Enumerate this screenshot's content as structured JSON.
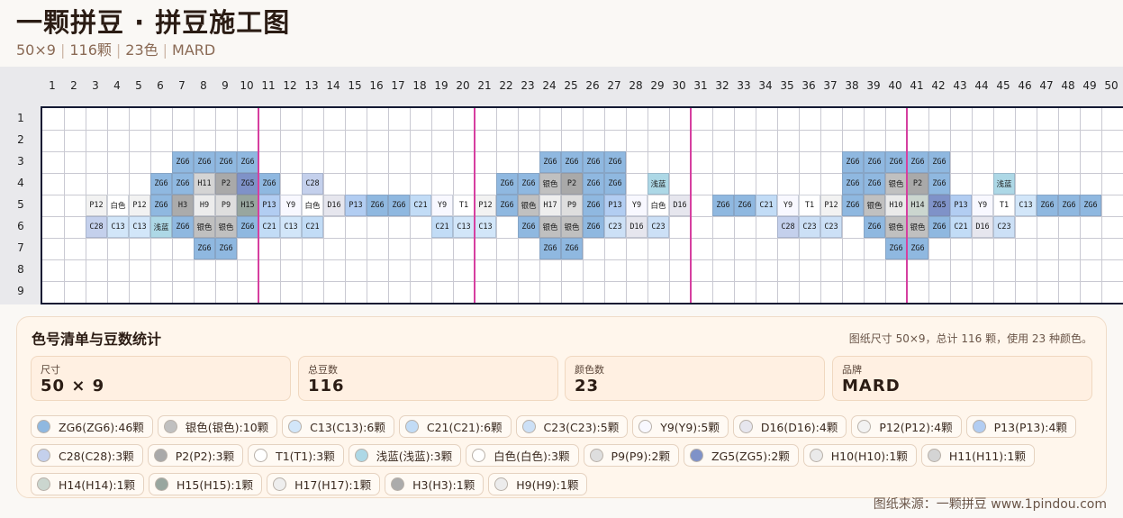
{
  "title": "一颗拼豆 · 拼豆施工图",
  "subtitle": {
    "size": "50×9",
    "count": "116颗",
    "colors": "23色",
    "brand": "MARD"
  },
  "grid": {
    "cols": 50,
    "rows": 9,
    "col_labels": [
      "1",
      "2",
      "3",
      "4",
      "5",
      "6",
      "7",
      "8",
      "9",
      "10",
      "11",
      "12",
      "13",
      "14",
      "15",
      "16",
      "17",
      "18",
      "19",
      "20",
      "21",
      "22",
      "23",
      "24",
      "25",
      "26",
      "27",
      "28",
      "29",
      "30",
      "31",
      "32",
      "33",
      "34",
      "35",
      "36",
      "37",
      "38",
      "39",
      "40",
      "41",
      "42",
      "43",
      "44",
      "45",
      "46",
      "47",
      "48",
      "49",
      "50"
    ],
    "row_labels": [
      "1",
      "2",
      "3",
      "4",
      "5",
      "6",
      "7",
      "8",
      "9"
    ],
    "cells": [
      {
        "r": 3,
        "c": 7,
        "t": "ZG6"
      },
      {
        "r": 3,
        "c": 8,
        "t": "ZG6"
      },
      {
        "r": 3,
        "c": 9,
        "t": "ZG6"
      },
      {
        "r": 3,
        "c": 10,
        "t": "ZG6"
      },
      {
        "r": 3,
        "c": 24,
        "t": "ZG6"
      },
      {
        "r": 3,
        "c": 25,
        "t": "ZG6"
      },
      {
        "r": 3,
        "c": 26,
        "t": "ZG6"
      },
      {
        "r": 3,
        "c": 27,
        "t": "ZG6"
      },
      {
        "r": 3,
        "c": 38,
        "t": "ZG6"
      },
      {
        "r": 3,
        "c": 39,
        "t": "ZG6"
      },
      {
        "r": 3,
        "c": 40,
        "t": "ZG6"
      },
      {
        "r": 3,
        "c": 41,
        "t": "ZG6"
      },
      {
        "r": 3,
        "c": 42,
        "t": "ZG6"
      },
      {
        "r": 4,
        "c": 6,
        "t": "ZG6"
      },
      {
        "r": 4,
        "c": 7,
        "t": "ZG6"
      },
      {
        "r": 4,
        "c": 8,
        "t": "H11"
      },
      {
        "r": 4,
        "c": 9,
        "t": "P2"
      },
      {
        "r": 4,
        "c": 10,
        "t": "ZG5"
      },
      {
        "r": 4,
        "c": 11,
        "t": "ZG6"
      },
      {
        "r": 4,
        "c": 13,
        "t": "C28"
      },
      {
        "r": 4,
        "c": 22,
        "t": "ZG6"
      },
      {
        "r": 4,
        "c": 23,
        "t": "ZG6"
      },
      {
        "r": 4,
        "c": 24,
        "t": "银色"
      },
      {
        "r": 4,
        "c": 25,
        "t": "P2"
      },
      {
        "r": 4,
        "c": 26,
        "t": "ZG6"
      },
      {
        "r": 4,
        "c": 27,
        "t": "ZG6"
      },
      {
        "r": 4,
        "c": 29,
        "t": "浅蓝"
      },
      {
        "r": 4,
        "c": 38,
        "t": "ZG6"
      },
      {
        "r": 4,
        "c": 39,
        "t": "ZG6"
      },
      {
        "r": 4,
        "c": 40,
        "t": "银色"
      },
      {
        "r": 4,
        "c": 41,
        "t": "P2"
      },
      {
        "r": 4,
        "c": 42,
        "t": "ZG6"
      },
      {
        "r": 4,
        "c": 45,
        "t": "浅蓝"
      },
      {
        "r": 5,
        "c": 3,
        "t": "P12"
      },
      {
        "r": 5,
        "c": 4,
        "t": "白色"
      },
      {
        "r": 5,
        "c": 5,
        "t": "P12"
      },
      {
        "r": 5,
        "c": 6,
        "t": "ZG6"
      },
      {
        "r": 5,
        "c": 7,
        "t": "H3"
      },
      {
        "r": 5,
        "c": 8,
        "t": "H9"
      },
      {
        "r": 5,
        "c": 9,
        "t": "P9"
      },
      {
        "r": 5,
        "c": 10,
        "t": "H15"
      },
      {
        "r": 5,
        "c": 11,
        "t": "P13"
      },
      {
        "r": 5,
        "c": 12,
        "t": "Y9"
      },
      {
        "r": 5,
        "c": 13,
        "t": "白色"
      },
      {
        "r": 5,
        "c": 14,
        "t": "D16"
      },
      {
        "r": 5,
        "c": 15,
        "t": "P13"
      },
      {
        "r": 5,
        "c": 16,
        "t": "ZG6"
      },
      {
        "r": 5,
        "c": 17,
        "t": "ZG6"
      },
      {
        "r": 5,
        "c": 18,
        "t": "C21"
      },
      {
        "r": 5,
        "c": 19,
        "t": "Y9"
      },
      {
        "r": 5,
        "c": 20,
        "t": "T1"
      },
      {
        "r": 5,
        "c": 21,
        "t": "P12"
      },
      {
        "r": 5,
        "c": 22,
        "t": "ZG6"
      },
      {
        "r": 5,
        "c": 23,
        "t": "银色"
      },
      {
        "r": 5,
        "c": 24,
        "t": "H17"
      },
      {
        "r": 5,
        "c": 25,
        "t": "P9"
      },
      {
        "r": 5,
        "c": 26,
        "t": "ZG6"
      },
      {
        "r": 5,
        "c": 27,
        "t": "P13"
      },
      {
        "r": 5,
        "c": 28,
        "t": "Y9"
      },
      {
        "r": 5,
        "c": 29,
        "t": "白色"
      },
      {
        "r": 5,
        "c": 30,
        "t": "D16"
      },
      {
        "r": 5,
        "c": 32,
        "t": "ZG6"
      },
      {
        "r": 5,
        "c": 33,
        "t": "ZG6"
      },
      {
        "r": 5,
        "c": 34,
        "t": "C21"
      },
      {
        "r": 5,
        "c": 35,
        "t": "Y9"
      },
      {
        "r": 5,
        "c": 36,
        "t": "T1"
      },
      {
        "r": 5,
        "c": 37,
        "t": "P12"
      },
      {
        "r": 5,
        "c": 38,
        "t": "ZG6"
      },
      {
        "r": 5,
        "c": 39,
        "t": "银色"
      },
      {
        "r": 5,
        "c": 40,
        "t": "H10"
      },
      {
        "r": 5,
        "c": 41,
        "t": "H14"
      },
      {
        "r": 5,
        "c": 42,
        "t": "ZG5"
      },
      {
        "r": 5,
        "c": 43,
        "t": "P13"
      },
      {
        "r": 5,
        "c": 44,
        "t": "Y9"
      },
      {
        "r": 5,
        "c": 45,
        "t": "T1"
      },
      {
        "r": 5,
        "c": 46,
        "t": "C13"
      },
      {
        "r": 5,
        "c": 47,
        "t": "ZG6"
      },
      {
        "r": 5,
        "c": 48,
        "t": "ZG6"
      },
      {
        "r": 5,
        "c": 49,
        "t": "ZG6"
      },
      {
        "r": 6,
        "c": 3,
        "t": "C28"
      },
      {
        "r": 6,
        "c": 4,
        "t": "C13"
      },
      {
        "r": 6,
        "c": 5,
        "t": "C13"
      },
      {
        "r": 6,
        "c": 6,
        "t": "浅蓝"
      },
      {
        "r": 6,
        "c": 7,
        "t": "ZG6"
      },
      {
        "r": 6,
        "c": 8,
        "t": "银色"
      },
      {
        "r": 6,
        "c": 9,
        "t": "银色"
      },
      {
        "r": 6,
        "c": 10,
        "t": "ZG6"
      },
      {
        "r": 6,
        "c": 11,
        "t": "C21"
      },
      {
        "r": 6,
        "c": 12,
        "t": "C13"
      },
      {
        "r": 6,
        "c": 13,
        "t": "C21"
      },
      {
        "r": 6,
        "c": 19,
        "t": "C21"
      },
      {
        "r": 6,
        "c": 20,
        "t": "C13"
      },
      {
        "r": 6,
        "c": 21,
        "t": "C13"
      },
      {
        "r": 6,
        "c": 23,
        "t": "ZG6"
      },
      {
        "r": 6,
        "c": 24,
        "t": "银色"
      },
      {
        "r": 6,
        "c": 25,
        "t": "银色"
      },
      {
        "r": 6,
        "c": 26,
        "t": "ZG6"
      },
      {
        "r": 6,
        "c": 27,
        "t": "C23"
      },
      {
        "r": 6,
        "c": 28,
        "t": "D16"
      },
      {
        "r": 6,
        "c": 29,
        "t": "C23"
      },
      {
        "r": 6,
        "c": 35,
        "t": "C28"
      },
      {
        "r": 6,
        "c": 36,
        "t": "C23"
      },
      {
        "r": 6,
        "c": 37,
        "t": "C23"
      },
      {
        "r": 6,
        "c": 39,
        "t": "ZG6"
      },
      {
        "r": 6,
        "c": 40,
        "t": "银色"
      },
      {
        "r": 6,
        "c": 41,
        "t": "银色"
      },
      {
        "r": 6,
        "c": 42,
        "t": "ZG6"
      },
      {
        "r": 6,
        "c": 43,
        "t": "C21"
      },
      {
        "r": 6,
        "c": 44,
        "t": "D16"
      },
      {
        "r": 6,
        "c": 45,
        "t": "C23"
      },
      {
        "r": 7,
        "c": 8,
        "t": "ZG6"
      },
      {
        "r": 7,
        "c": 9,
        "t": "ZG6"
      },
      {
        "r": 7,
        "c": 24,
        "t": "ZG6"
      },
      {
        "r": 7,
        "c": 25,
        "t": "ZG6"
      },
      {
        "r": 7,
        "c": 40,
        "t": "ZG6"
      },
      {
        "r": 7,
        "c": 41,
        "t": "ZG6"
      }
    ]
  },
  "palette": {
    "ZG6": "#8fb8e0",
    "ZG5": "#7f92c8",
    "H11": "#d4d4d4",
    "P2": "#a9a9a9",
    "H3": "#ababab",
    "H9": "#ececec",
    "P9": "#dedede",
    "H15": "#98a69f",
    "H17": "#eeeeee",
    "H10": "#eaeaea",
    "H14": "#cbd6cf",
    "P12": "#f2f2f2",
    "白色": "#ffffff",
    "P13": "#b2cdf2",
    "Y9": "#f8f8ff",
    "D16": "#e6e6ee",
    "C21": "#c2dcf6",
    "T1": "#ffffff",
    "C28": "#c4d0ec",
    "C13": "#d2e6f9",
    "C23": "#cce0f6",
    "银色": "#c0c0c0",
    "浅蓝": "#add8e6"
  },
  "panel": {
    "title": "色号清单与豆数统计",
    "note": "图纸尺寸 50×9，总计 116 颗，使用 23 种颜色。",
    "stats": [
      {
        "label": "尺寸",
        "value": "50 × 9"
      },
      {
        "label": "总豆数",
        "value": "116"
      },
      {
        "label": "颜色数",
        "value": "23"
      },
      {
        "label": "品牌",
        "value": "MARD"
      }
    ],
    "chips": [
      {
        "text": "ZG6(ZG6):46颗",
        "color": "#8fb8e0"
      },
      {
        "text": "银色(银色):10颗",
        "color": "#c0c0c0"
      },
      {
        "text": "C13(C13):6颗",
        "color": "#d2e6f9"
      },
      {
        "text": "C21(C21):6颗",
        "color": "#c2dcf6"
      },
      {
        "text": "C23(C23):5颗",
        "color": "#cce0f6"
      },
      {
        "text": "Y9(Y9):5颗",
        "color": "#f8f8ff"
      },
      {
        "text": "D16(D16):4颗",
        "color": "#e6e6ee"
      },
      {
        "text": "P12(P12):4颗",
        "color": "#f2f2f2"
      },
      {
        "text": "P13(P13):4颗",
        "color": "#b2cdf2"
      },
      {
        "text": "C28(C28):3颗",
        "color": "#c4d0ec"
      },
      {
        "text": "P2(P2):3颗",
        "color": "#a9a9a9"
      },
      {
        "text": "T1(T1):3颗",
        "color": "#ffffff"
      },
      {
        "text": "浅蓝(浅蓝):3颗",
        "color": "#add8e6"
      },
      {
        "text": "白色(白色):3颗",
        "color": "#ffffff"
      },
      {
        "text": "P9(P9):2颗",
        "color": "#dedede"
      },
      {
        "text": "ZG5(ZG5):2颗",
        "color": "#7f92c8"
      },
      {
        "text": "H10(H10):1颗",
        "color": "#eaeaea"
      },
      {
        "text": "H11(H11):1颗",
        "color": "#d4d4d4"
      },
      {
        "text": "H14(H14):1颗",
        "color": "#cbd6cf"
      },
      {
        "text": "H15(H15):1颗",
        "color": "#98a69f"
      },
      {
        "text": "H17(H17):1颗",
        "color": "#eeeeee"
      },
      {
        "text": "H3(H3):1颗",
        "color": "#ababab"
      },
      {
        "text": "H9(H9):1颗",
        "color": "#ececec"
      }
    ]
  },
  "source": "图纸来源：一颗拼豆 www.1pindou.com"
}
